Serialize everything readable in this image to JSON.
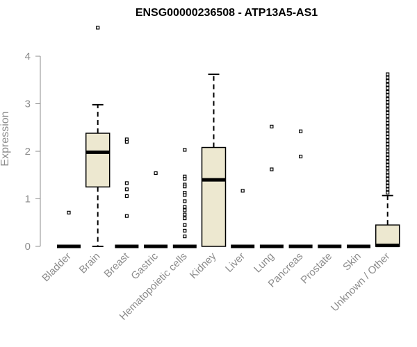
{
  "chart_data": {
    "type": "box",
    "title": "ENSG00000236508 - ATP13A5-AS1",
    "ylabel": "Expression",
    "xlabel": "",
    "ylim": [
      0,
      4.6
    ],
    "yticks": [
      0,
      1,
      2,
      3,
      4
    ],
    "grid": false,
    "colors": {
      "box_fill": "#ede8d0",
      "stroke": "#000000",
      "axis": "#8c8c8c"
    },
    "categories": [
      "Bladder",
      "Brain",
      "Breast",
      "Gastric",
      "Hematopoietic cells",
      "Kidney",
      "Liver",
      "Lung",
      "Pancreas",
      "Prostate",
      "Skin",
      "Unknown / Other"
    ],
    "boxes": [
      {
        "q1": 0,
        "median": 0,
        "q3": 0,
        "whisker_low": 0,
        "whisker_high": 0,
        "outliers": [
          0.71
        ]
      },
      {
        "q1": 1.25,
        "median": 1.98,
        "q3": 2.38,
        "whisker_low": 0,
        "whisker_high": 2.98,
        "outliers": [
          4.6
        ]
      },
      {
        "q1": 0,
        "median": 0,
        "q3": 0,
        "whisker_low": 0,
        "whisker_high": 0,
        "outliers": [
          2.25,
          2.2,
          1.33,
          1.2,
          1.06,
          0.64
        ]
      },
      {
        "q1": 0,
        "median": 0,
        "q3": 0,
        "whisker_low": 0,
        "whisker_high": 0,
        "outliers": [
          1.54
        ]
      },
      {
        "q1": 0,
        "median": 0,
        "q3": 0,
        "whisker_low": 0,
        "whisker_high": 0,
        "outliers": [
          2.03,
          1.47,
          1.42,
          1.3,
          1.26,
          1.13,
          1.08,
          0.95,
          0.83,
          0.76,
          0.67,
          0.59,
          0.45,
          0.33,
          0.21
        ]
      },
      {
        "q1": 0,
        "median": 1.4,
        "q3": 2.08,
        "whisker_low": 0,
        "whisker_high": 3.62,
        "outliers": []
      },
      {
        "q1": 0,
        "median": 0,
        "q3": 0,
        "whisker_low": 0,
        "whisker_high": 0,
        "outliers": [
          1.17
        ]
      },
      {
        "q1": 0,
        "median": 0,
        "q3": 0,
        "whisker_low": 0,
        "whisker_high": 0,
        "outliers": [
          2.52,
          1.62
        ]
      },
      {
        "q1": 0,
        "median": 0,
        "q3": 0,
        "whisker_low": 0,
        "whisker_high": 0,
        "outliers": [
          2.42,
          1.89
        ]
      },
      {
        "q1": 0,
        "median": 0,
        "q3": 0,
        "whisker_low": 0,
        "whisker_high": 0,
        "outliers": []
      },
      {
        "q1": 0,
        "median": 0,
        "q3": 0,
        "whisker_low": 0,
        "whisker_high": 0,
        "outliers": []
      },
      {
        "q1": 0,
        "median": 0.02,
        "q3": 0.45,
        "whisker_low": 0,
        "whisker_high": 1.07,
        "outliers": [
          3.62,
          3.55,
          3.48,
          3.4,
          3.33,
          3.25,
          3.18,
          3.1,
          3.03,
          2.96,
          2.88,
          2.81,
          2.74,
          2.66,
          2.59,
          2.52,
          2.44,
          2.37,
          2.3,
          2.22,
          2.15,
          2.08,
          2.0,
          1.93,
          1.86,
          1.78,
          1.71,
          1.64,
          1.56,
          1.49,
          1.42,
          1.34,
          1.27,
          1.2,
          1.13
        ]
      }
    ]
  }
}
